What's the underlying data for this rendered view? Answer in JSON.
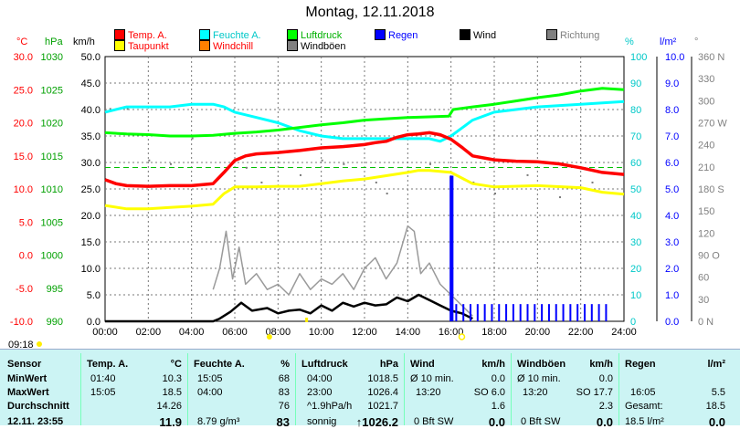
{
  "title": "Montag, 12.11.2018",
  "legend": [
    {
      "label": "Temp. A.",
      "color": "#ff0000"
    },
    {
      "label": "Feuchte A.",
      "color": "#00ffff"
    },
    {
      "label": "Luftdruck",
      "color": "#00ff00"
    },
    {
      "label": "Regen",
      "color": "#0000ff"
    },
    {
      "label": "Wind",
      "color": "#000000"
    },
    {
      "label": "Richtung",
      "color": "#808080"
    },
    {
      "label": "Taupunkt",
      "color": "#ffff00"
    },
    {
      "label": "Windchill",
      "color": "#ff8000"
    },
    {
      "label": "Windböen",
      "color": "#808080"
    }
  ],
  "units": {
    "temp": "°C",
    "press": "hPa",
    "wind": "km/h",
    "hum": "%",
    "rain": "l/m²",
    "dir": "°"
  },
  "axes": {
    "temp": [
      "30.0",
      "25.0",
      "20.0",
      "15.0",
      "10.0",
      "5.0",
      "0.0",
      "-5.0",
      "-10.0"
    ],
    "press": [
      "1030",
      "1025",
      "1020",
      "1015",
      "1010",
      "1005",
      "1000",
      "995",
      "990"
    ],
    "wind": [
      "50.0",
      "45.0",
      "40.0",
      "35.0",
      "30.0",
      "25.0",
      "20.0",
      "15.0",
      "10.0",
      "5.0",
      "0.0"
    ],
    "hum": [
      "100",
      "90",
      "80",
      "70",
      "60",
      "50",
      "40",
      "30",
      "20",
      "10",
      "0"
    ],
    "rain": [
      "10.0",
      "9.0",
      "8.0",
      "7.0",
      "6.0",
      "5.0",
      "4.0",
      "3.0",
      "2.0",
      "1.0",
      "0.0"
    ],
    "dir": [
      "360 N",
      "330",
      "300",
      "270 W",
      "240",
      "210",
      "180 S",
      "150",
      "120",
      "90 O",
      "60",
      "30",
      "0 N"
    ],
    "hours": [
      "00:00",
      "02:00",
      "04:00",
      "06:00",
      "08:00",
      "10:00",
      "12:00",
      "14:00",
      "16:00",
      "18:00",
      "20:00",
      "22:00",
      "24:00"
    ]
  },
  "current_time": "09:18",
  "chart_data": {
    "type": "line",
    "title": "Montag, 12.11.2018",
    "x_range_hours": [
      0,
      24
    ],
    "series": [
      {
        "name": "Temp. A.",
        "axis": "°C",
        "color": "#ff0000",
        "x": [
          0,
          0.5,
          1,
          2,
          3,
          4,
          5,
          5.5,
          6,
          6.5,
          7,
          8,
          9,
          10,
          11,
          12,
          12.5,
          13,
          13.5,
          14,
          14.5,
          15,
          15.5,
          16,
          16.5,
          17,
          18,
          19,
          20,
          21,
          22,
          23,
          24
        ],
        "y": [
          11.4,
          10.8,
          10.5,
          10.4,
          10.5,
          10.5,
          10.8,
          12.5,
          14.3,
          15.0,
          15.3,
          15.5,
          15.8,
          16.2,
          16.4,
          16.7,
          17.0,
          17.2,
          17.8,
          18.2,
          18.3,
          18.5,
          18.2,
          17.5,
          16.3,
          15.0,
          14.4,
          14.2,
          14.1,
          13.8,
          13.2,
          12.5,
          12.2
        ]
      },
      {
        "name": "Taupunkt",
        "axis": "°C",
        "color": "#ffff00",
        "x": [
          0,
          1,
          2,
          3,
          4,
          5,
          5.5,
          6,
          7,
          8,
          9,
          10,
          11,
          12,
          13,
          14,
          14.5,
          15,
          16,
          17,
          18,
          20,
          22,
          23,
          24
        ],
        "y": [
          7.5,
          7.0,
          7.0,
          7.2,
          7.4,
          7.7,
          9.3,
          10.3,
          10.3,
          10.4,
          10.4,
          10.8,
          11.2,
          11.5,
          12.0,
          12.5,
          12.8,
          12.8,
          12.5,
          10.8,
          10.3,
          10.5,
          10.2,
          9.5,
          9.2
        ]
      },
      {
        "name": "Feuchte A.",
        "axis": "%",
        "color": "#00ffff",
        "x": [
          0,
          1,
          2,
          3,
          4,
          5,
          5.5,
          6,
          7,
          8,
          9,
          10,
          11,
          12,
          13,
          14,
          15,
          15.5,
          16,
          16.5,
          17,
          18,
          19,
          20,
          22,
          24
        ],
        "y": [
          79,
          81,
          81,
          81,
          82,
          82,
          81,
          79,
          77,
          75,
          72,
          70,
          69,
          69,
          69,
          69,
          69,
          68,
          70,
          73,
          76,
          79,
          80,
          81,
          82,
          83
        ]
      },
      {
        "name": "Luftdruck",
        "axis": "hPa",
        "color": "#00ff00",
        "x": [
          0,
          1,
          2,
          3,
          4,
          5,
          6,
          7,
          8,
          9,
          10,
          11,
          12,
          13,
          14,
          15,
          15.9,
          16.1,
          17,
          18,
          19,
          20,
          21,
          22,
          23,
          24
        ],
        "y": [
          1018.5,
          1018.3,
          1018.2,
          1018.0,
          1018.0,
          1018.1,
          1018.4,
          1018.6,
          1018.9,
          1019.3,
          1019.7,
          1020.0,
          1020.4,
          1020.6,
          1020.8,
          1020.9,
          1021.0,
          1022.0,
          1022.4,
          1022.8,
          1023.3,
          1023.8,
          1024.2,
          1024.8,
          1025.2,
          1025.0
        ]
      },
      {
        "name": "Wind",
        "axis": "km/h",
        "color": "#000000",
        "x": [
          0,
          4,
          5,
          5.3,
          5.8,
          6.3,
          6.8,
          7.5,
          8,
          8.5,
          9,
          9.5,
          10,
          10.5,
          11,
          11.5,
          12,
          12.5,
          13,
          13.5,
          14,
          14.5,
          15,
          15.5,
          16,
          16.5,
          17
        ],
        "y": [
          0,
          0,
          0,
          0.5,
          1.8,
          3.5,
          2.0,
          2.5,
          1.5,
          2.0,
          2.2,
          1.5,
          3.0,
          2.0,
          3.5,
          2.8,
          3.5,
          3.0,
          3.2,
          4.5,
          3.8,
          5.0,
          4.0,
          3.0,
          2.0,
          1.5,
          0.5
        ]
      },
      {
        "name": "Windböen",
        "axis": "km/h",
        "color": "#808080",
        "x": [
          5,
          5.3,
          5.6,
          5.9,
          6.2,
          6.5,
          7,
          7.5,
          8,
          8.5,
          9,
          9.5,
          10,
          10.5,
          11,
          11.5,
          12,
          12.5,
          13,
          13.5,
          14,
          14.3,
          14.6,
          15,
          15.5,
          16,
          16.5,
          17
        ],
        "y": [
          6,
          10,
          17,
          8,
          14,
          7,
          9,
          6,
          7,
          5,
          9,
          6,
          8,
          7,
          9,
          6,
          10,
          12,
          8,
          11,
          18,
          17,
          9,
          11,
          7,
          5,
          3,
          1
        ]
      },
      {
        "name": "Regen",
        "axis": "l/m²",
        "color": "#0000ff",
        "x": [
          16.0,
          16.05
        ],
        "y": [
          5.5,
          5.5
        ]
      }
    ]
  },
  "table": {
    "sensor": {
      "header": "Sensor",
      "rows": [
        "MinWert",
        "MaxWert",
        "Durchschnitt",
        "12.11. 23:55"
      ]
    },
    "temp": {
      "header": "Temp. A.",
      "unit": "°C",
      "time": [
        "01:40",
        "15:05",
        "",
        ""
      ],
      "val": [
        "10.3",
        "18.5",
        "14.26",
        "11.9"
      ]
    },
    "hum": {
      "header": "Feuchte A.",
      "unit": "%",
      "time": [
        "15:05",
        "04:00",
        "",
        "8.79 g/m³"
      ],
      "val": [
        "68",
        "83",
        "76",
        "83"
      ]
    },
    "press": {
      "header": "Luftdruck",
      "unit": "hPa",
      "time": [
        "04:00",
        "23:00",
        "^1.9hPa/h",
        "sonnig"
      ],
      "val": [
        "1018.5",
        "1026.4",
        "1021.7",
        "↑1026.2"
      ]
    },
    "wind": {
      "header": "Wind",
      "unit": "km/h",
      "time": [
        "Ø 10 min.",
        "13:20",
        "",
        "0 Bft SW"
      ],
      "val": [
        "0.0",
        "SO 6.0",
        "1.6",
        "0.0"
      ]
    },
    "gust": {
      "header": "Windböen",
      "unit": "km/h",
      "time": [
        "Ø 10 min.",
        "13:20",
        "",
        "0 Bft SW"
      ],
      "val": [
        "0.0",
        "SO 17.7",
        "2.3",
        "0.0"
      ]
    },
    "rain": {
      "header": "Regen",
      "unit": "l/m²",
      "time": [
        "",
        "16:05",
        "Gesamt:",
        "18.5 l/m²"
      ],
      "val": [
        "",
        "5.5",
        "18.5",
        "0.0"
      ]
    }
  }
}
